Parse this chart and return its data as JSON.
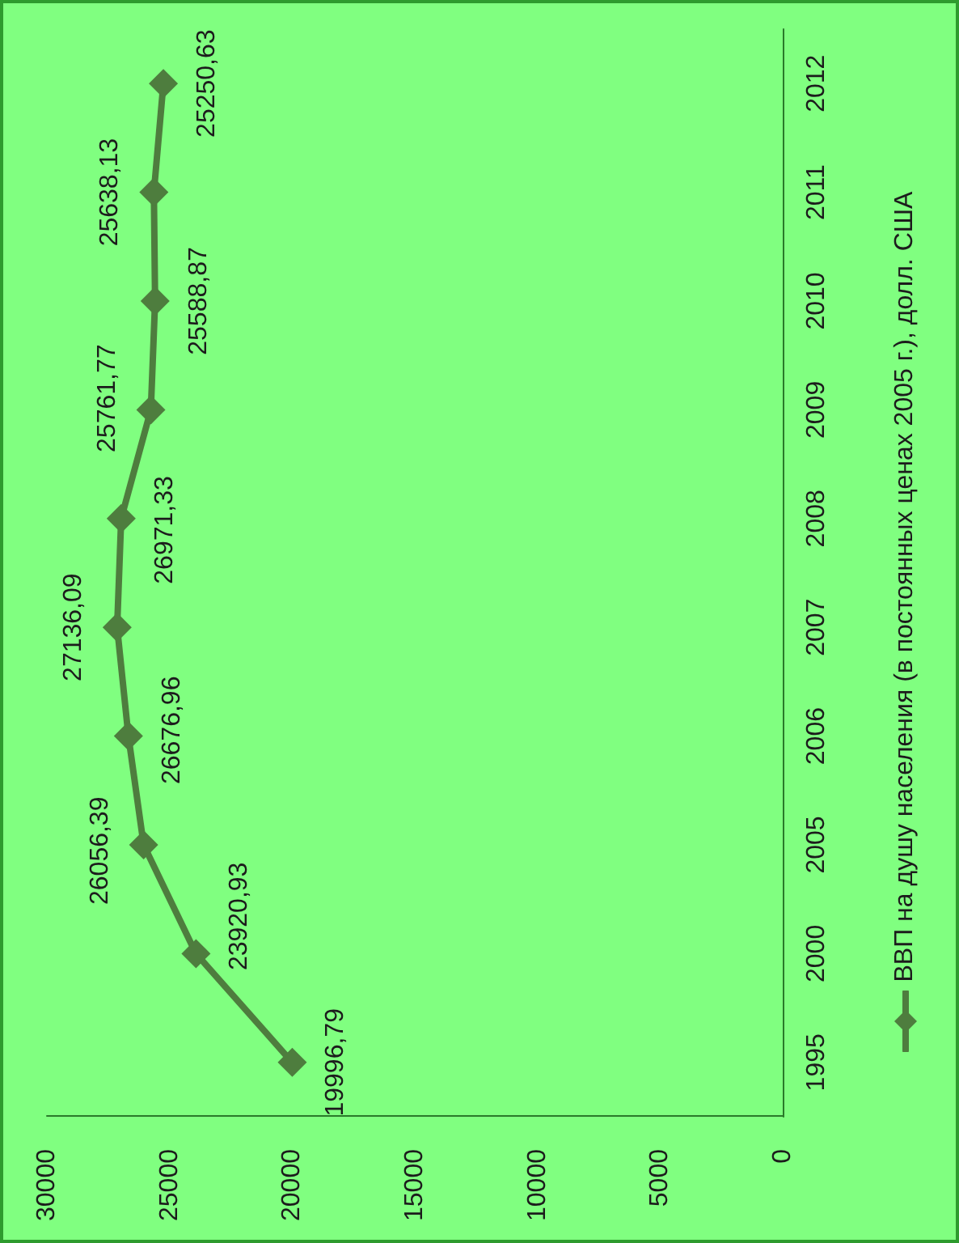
{
  "chart_data": {
    "type": "line",
    "orientation": "horizontal",
    "categories": [
      "2012",
      "2011",
      "2010",
      "2009",
      "2008",
      "2007",
      "2006",
      "2005",
      "2000",
      "1995"
    ],
    "series": [
      {
        "name": "ВВП на душу населения (в постоянных ценах 2005 г.), долл. США",
        "color": "#4e7d3e",
        "values": [
          25250.63,
          25638.13,
          25588.87,
          25761.77,
          26971.33,
          27136.09,
          26676.96,
          26056.39,
          23920.93,
          19996.79
        ],
        "value_labels": [
          "25250,63",
          "25638,13",
          "25588,87",
          "25761,77",
          "26971,33",
          "27136,09",
          "26676,96",
          "26056,39",
          "23920,93",
          "19996,79"
        ]
      }
    ],
    "xlim": [
      30000,
      0
    ],
    "xticks": [
      30000,
      25000,
      20000,
      15000,
      10000,
      5000,
      0
    ],
    "grid": false,
    "legend": "bottom",
    "marker": "diamond",
    "line_style": "solid"
  }
}
